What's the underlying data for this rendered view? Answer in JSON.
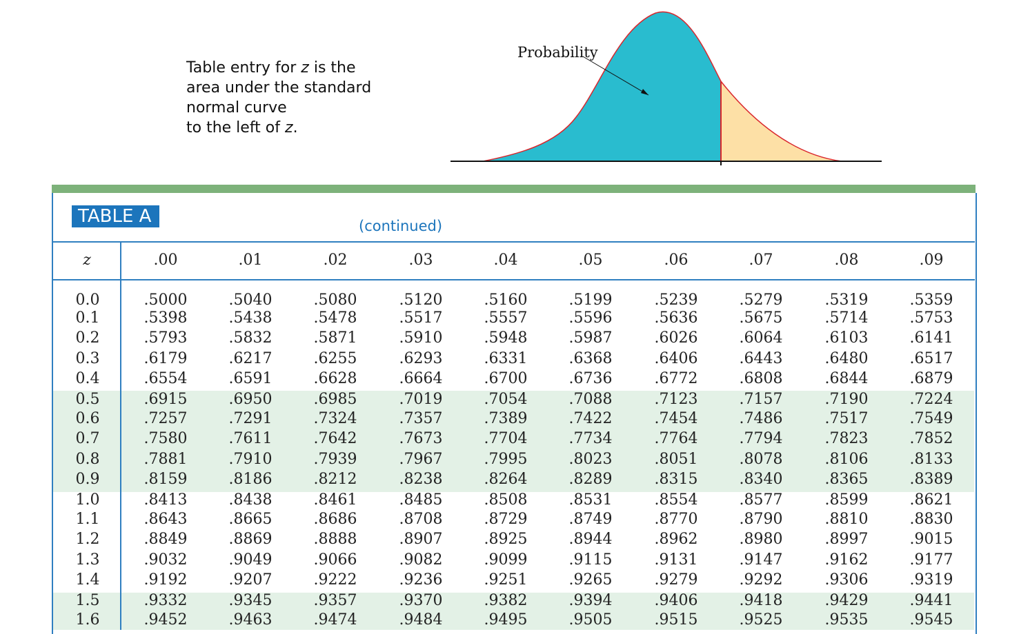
{
  "caption": {
    "line1_pre": "Table entry for ",
    "line1_var": "z",
    "line1_post": " is the",
    "line2": "area under the standard",
    "line3": "normal curve",
    "line4_pre": "to the left of ",
    "line4_var": "z",
    "line4_post": "."
  },
  "figure": {
    "label": "Probability",
    "colors": {
      "left_area": "#29bccf",
      "right_area": "#fde0a6",
      "boundary": "#d9262c"
    }
  },
  "table": {
    "title": "TABLE A",
    "subtitle": "(continued)",
    "z_header": "z",
    "columns": [
      ".00",
      ".01",
      ".02",
      ".03",
      ".04",
      ".05",
      ".06",
      ".07",
      ".08",
      ".09"
    ],
    "rows": [
      {
        "z": "0.0",
        "values": [
          ".5000",
          ".5040",
          ".5080",
          ".5120",
          ".5160",
          ".5199",
          ".5239",
          ".5279",
          ".5319",
          ".5359"
        ]
      },
      {
        "z": "0.1",
        "values": [
          ".5398",
          ".5438",
          ".5478",
          ".5517",
          ".5557",
          ".5596",
          ".5636",
          ".5675",
          ".5714",
          ".5753"
        ]
      },
      {
        "z": "0.2",
        "values": [
          ".5793",
          ".5832",
          ".5871",
          ".5910",
          ".5948",
          ".5987",
          ".6026",
          ".6064",
          ".6103",
          ".6141"
        ]
      },
      {
        "z": "0.3",
        "values": [
          ".6179",
          ".6217",
          ".6255",
          ".6293",
          ".6331",
          ".6368",
          ".6406",
          ".6443",
          ".6480",
          ".6517"
        ]
      },
      {
        "z": "0.4",
        "values": [
          ".6554",
          ".6591",
          ".6628",
          ".6664",
          ".6700",
          ".6736",
          ".6772",
          ".6808",
          ".6844",
          ".6879"
        ]
      },
      {
        "z": "0.5",
        "values": [
          ".6915",
          ".6950",
          ".6985",
          ".7019",
          ".7054",
          ".7088",
          ".7123",
          ".7157",
          ".7190",
          ".7224"
        ]
      },
      {
        "z": "0.6",
        "values": [
          ".7257",
          ".7291",
          ".7324",
          ".7357",
          ".7389",
          ".7422",
          ".7454",
          ".7486",
          ".7517",
          ".7549"
        ]
      },
      {
        "z": "0.7",
        "values": [
          ".7580",
          ".7611",
          ".7642",
          ".7673",
          ".7704",
          ".7734",
          ".7764",
          ".7794",
          ".7823",
          ".7852"
        ]
      },
      {
        "z": "0.8",
        "values": [
          ".7881",
          ".7910",
          ".7939",
          ".7967",
          ".7995",
          ".8023",
          ".8051",
          ".8078",
          ".8106",
          ".8133"
        ]
      },
      {
        "z": "0.9",
        "values": [
          ".8159",
          ".8186",
          ".8212",
          ".8238",
          ".8264",
          ".8289",
          ".8315",
          ".8340",
          ".8365",
          ".8389"
        ]
      },
      {
        "z": "1.0",
        "values": [
          ".8413",
          ".8438",
          ".8461",
          ".8485",
          ".8508",
          ".8531",
          ".8554",
          ".8577",
          ".8599",
          ".8621"
        ]
      },
      {
        "z": "1.1",
        "values": [
          ".8643",
          ".8665",
          ".8686",
          ".8708",
          ".8729",
          ".8749",
          ".8770",
          ".8790",
          ".8810",
          ".8830"
        ]
      },
      {
        "z": "1.2",
        "values": [
          ".8849",
          ".8869",
          ".8888",
          ".8907",
          ".8925",
          ".8944",
          ".8962",
          ".8980",
          ".8997",
          ".9015"
        ]
      },
      {
        "z": "1.3",
        "values": [
          ".9032",
          ".9049",
          ".9066",
          ".9082",
          ".9099",
          ".9115",
          ".9131",
          ".9147",
          ".9162",
          ".9177"
        ]
      },
      {
        "z": "1.4",
        "values": [
          ".9192",
          ".9207",
          ".9222",
          ".9236",
          ".9251",
          ".9265",
          ".9279",
          ".9292",
          ".9306",
          ".9319"
        ]
      },
      {
        "z": "1.5",
        "values": [
          ".9332",
          ".9345",
          ".9357",
          ".9370",
          ".9382",
          ".9394",
          ".9406",
          ".9418",
          ".9429",
          ".9441"
        ]
      },
      {
        "z": "1.6",
        "values": [
          ".9452",
          ".9463",
          ".9474",
          ".9484",
          ".9495",
          ".9505",
          ".9515",
          ".9525",
          ".9535",
          ".9545"
        ]
      }
    ],
    "colors": {
      "border": "#2f7fc0",
      "band": "#e3f1e6",
      "top_bar": "#7db27a",
      "title_bg": "#1c75bc"
    }
  }
}
